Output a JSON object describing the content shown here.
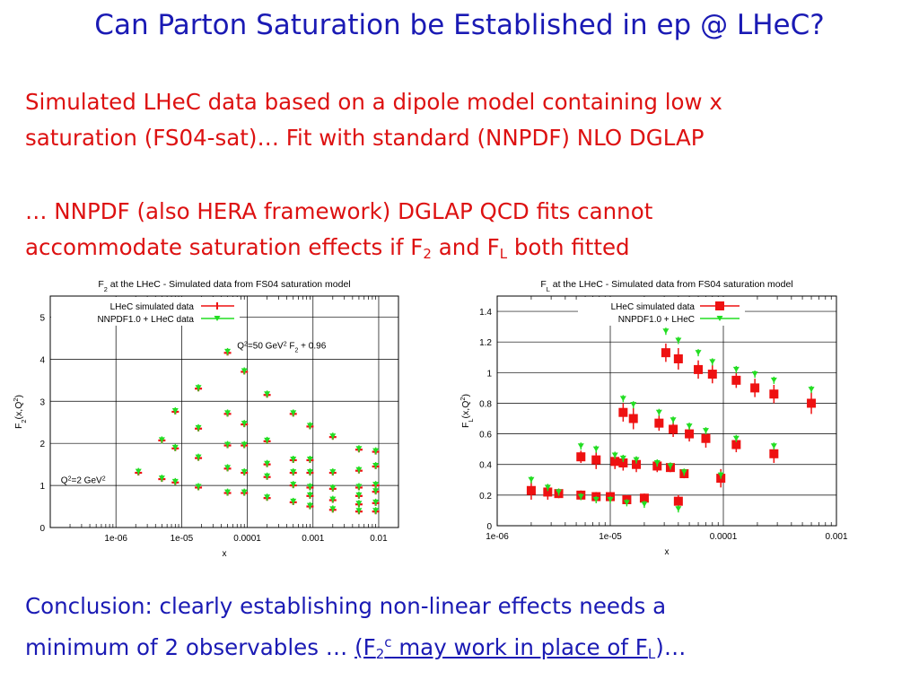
{
  "slide": {
    "title": "Can Parton Saturation be Established in ep @ LHeC?",
    "para1": {
      "line1": "Simulated LHeC data based on a dipole model containing low x",
      "line2": "saturation (FS04-sat)… Fit with standard (NNPDF) NLO DGLAP"
    },
    "para2": {
      "line1": "… NNPDF (also HERA framework) DGLAP QCD fits cannot",
      "line2_pre": "accommodate saturation effects if F",
      "line2_sub2": "2",
      "line2_and": " and F",
      "line2_subL": "L",
      "line2_post": " both fitted"
    },
    "conclusion": {
      "line1": "Conclusion: clearly establishing non-linear effects needs a",
      "line2_pre": "minimum of 2 observables … ",
      "line2_link_a": "(F",
      "line2_sub": "2",
      "line2_sup": "c",
      "line2_link_b": " may work in place of F",
      "line2_subL": "L",
      "line2_link_c": ")",
      "line2_post": "…"
    }
  },
  "colors": {
    "title": "#1a1ab4",
    "text": "#dd1111",
    "sim": "#ee1111",
    "nnpdf": "#22dd22"
  },
  "chart_data": [
    {
      "type": "scatter",
      "title": "F2 at the LHeC - Simulated data from FS04 saturation model",
      "xlabel": "x",
      "ylabel": "F2(x,Q2)",
      "xscale": "log",
      "xlim": [
        1e-07,
        0.02
      ],
      "ylim": [
        0,
        5.5
      ],
      "xticks": [
        {
          "v": 1e-06,
          "label": "1e-06"
        },
        {
          "v": 1e-05,
          "label": "1e-05"
        },
        {
          "v": 0.0001,
          "label": "0.0001"
        },
        {
          "v": 0.001,
          "label": "0.001"
        },
        {
          "v": 0.01,
          "label": "0.01"
        }
      ],
      "yticks": [
        0,
        1,
        2,
        3,
        4,
        5
      ],
      "grid": true,
      "legend_position": "top-left",
      "annotations": [
        {
          "text": "Q2=50 GeV2  F2 + 0.96",
          "parts": [
            "Q",
            "2",
            "=50 GeV",
            "2",
            "  F",
            "2",
            " + 0.96"
          ],
          "x": 7e-05,
          "y": 4.25
        },
        {
          "text": "Q2=2 GeV2",
          "parts": [
            "Q",
            "2",
            "=2 GeV",
            "2"
          ],
          "x": 1.45e-07,
          "y": 1.05
        }
      ],
      "series": [
        {
          "name": "LHeC simulated data",
          "marker": "red-cross",
          "points": [
            [
              2.2e-06,
              1.3
            ],
            [
              5e-06,
              1.15
            ],
            [
              5e-06,
              2.07
            ],
            [
              8e-06,
              1.07
            ],
            [
              8e-06,
              1.88
            ],
            [
              8e-06,
              2.75
            ],
            [
              1.8e-05,
              0.95
            ],
            [
              1.8e-05,
              1.65
            ],
            [
              1.8e-05,
              2.35
            ],
            [
              1.8e-05,
              3.3
            ],
            [
              5e-05,
              0.82
            ],
            [
              5e-05,
              1.4
            ],
            [
              5e-05,
              1.95
            ],
            [
              5e-05,
              2.7
            ],
            [
              5e-05,
              4.15
            ],
            [
              9e-05,
              0.82
            ],
            [
              9e-05,
              1.3
            ],
            [
              9e-05,
              1.95
            ],
            [
              9e-05,
              2.45
            ],
            [
              9e-05,
              3.7
            ],
            [
              0.0002,
              0.7
            ],
            [
              0.0002,
              1.2
            ],
            [
              0.0002,
              1.5
            ],
            [
              0.0002,
              2.05
            ],
            [
              0.0002,
              3.15
            ],
            [
              0.0005,
              0.6
            ],
            [
              0.0005,
              1.0
            ],
            [
              0.0005,
              1.3
            ],
            [
              0.0005,
              1.6
            ],
            [
              0.0005,
              2.7
            ],
            [
              0.0009,
              0.5
            ],
            [
              0.0009,
              0.75
            ],
            [
              0.0009,
              0.95
            ],
            [
              0.0009,
              1.3
            ],
            [
              0.0009,
              1.6
            ],
            [
              0.0009,
              2.4
            ],
            [
              0.002,
              0.42
            ],
            [
              0.002,
              0.65
            ],
            [
              0.002,
              0.92
            ],
            [
              0.002,
              1.3
            ],
            [
              0.002,
              2.15
            ],
            [
              0.005,
              0.38
            ],
            [
              0.005,
              0.55
            ],
            [
              0.005,
              0.75
            ],
            [
              0.005,
              0.95
            ],
            [
              0.005,
              1.35
            ],
            [
              0.005,
              1.85
            ],
            [
              0.009,
              0.38
            ],
            [
              0.009,
              0.58
            ],
            [
              0.009,
              0.85
            ],
            [
              0.009,
              1.0
            ],
            [
              0.009,
              1.45
            ],
            [
              0.009,
              1.8
            ]
          ]
        },
        {
          "name": "NNPDF1.0 + LHeC data",
          "marker": "green-triangle",
          "points": [
            [
              2.2e-06,
              1.33
            ],
            [
              5e-06,
              1.17
            ],
            [
              5e-06,
              2.08
            ],
            [
              8e-06,
              1.09
            ],
            [
              8e-06,
              1.9
            ],
            [
              8e-06,
              2.77
            ],
            [
              1.8e-05,
              0.97
            ],
            [
              1.8e-05,
              1.67
            ],
            [
              1.8e-05,
              2.37
            ],
            [
              1.8e-05,
              3.32
            ],
            [
              5e-05,
              0.84
            ],
            [
              5e-05,
              1.42
            ],
            [
              5e-05,
              1.97
            ],
            [
              5e-05,
              2.72
            ],
            [
              5e-05,
              4.18
            ],
            [
              9e-05,
              0.84
            ],
            [
              9e-05,
              1.32
            ],
            [
              9e-05,
              1.97
            ],
            [
              9e-05,
              2.47
            ],
            [
              9e-05,
              3.72
            ],
            [
              0.0002,
              0.72
            ],
            [
              0.0002,
              1.22
            ],
            [
              0.0002,
              1.52
            ],
            [
              0.0002,
              2.07
            ],
            [
              0.0002,
              3.17
            ],
            [
              0.0005,
              0.62
            ],
            [
              0.0005,
              1.02
            ],
            [
              0.0005,
              1.32
            ],
            [
              0.0005,
              1.62
            ],
            [
              0.0005,
              2.72
            ],
            [
              0.0009,
              0.52
            ],
            [
              0.0009,
              0.77
            ],
            [
              0.0009,
              0.97
            ],
            [
              0.0009,
              1.32
            ],
            [
              0.0009,
              1.62
            ],
            [
              0.0009,
              2.42
            ],
            [
              0.002,
              0.44
            ],
            [
              0.002,
              0.67
            ],
            [
              0.002,
              0.94
            ],
            [
              0.002,
              1.32
            ],
            [
              0.002,
              2.17
            ],
            [
              0.005,
              0.4
            ],
            [
              0.005,
              0.57
            ],
            [
              0.005,
              0.77
            ],
            [
              0.005,
              0.97
            ],
            [
              0.005,
              1.37
            ],
            [
              0.005,
              1.87
            ],
            [
              0.009,
              0.4
            ],
            [
              0.009,
              0.6
            ],
            [
              0.009,
              0.87
            ],
            [
              0.009,
              1.02
            ],
            [
              0.009,
              1.47
            ],
            [
              0.009,
              1.82
            ]
          ]
        }
      ]
    },
    {
      "type": "scatter",
      "title": "FL at the LHeC - Simulated data from FS04 saturation model",
      "xlabel": "x",
      "ylabel": "FL(x,Q2)",
      "xscale": "log",
      "xlim": [
        1e-06,
        0.001
      ],
      "ylim": [
        0,
        1.5
      ],
      "xticks": [
        {
          "v": 1e-06,
          "label": "1e-06"
        },
        {
          "v": 1e-05,
          "label": "1e-05"
        },
        {
          "v": 0.0001,
          "label": "0.0001"
        },
        {
          "v": 0.001,
          "label": "0.001"
        }
      ],
      "yticks": [
        0,
        0.2,
        0.4,
        0.6,
        0.8,
        1,
        1.2,
        1.4
      ],
      "grid": true,
      "legend_position": "top-right",
      "series": [
        {
          "name": "LHeC simulated data",
          "marker": "red-square",
          "points": [
            [
              2e-06,
              0.23,
              0.06
            ],
            [
              2.8e-06,
              0.22,
              0.05
            ],
            [
              3.5e-06,
              0.21,
              0.03
            ],
            [
              5.5e-06,
              0.2,
              0.03
            ],
            [
              7.5e-06,
              0.19,
              0.03
            ],
            [
              1e-05,
              0.19,
              0.03
            ],
            [
              1.4e-05,
              0.17,
              0.03
            ],
            [
              2e-05,
              0.18,
              0.03
            ],
            [
              4e-05,
              0.16,
              0.04
            ],
            [
              5.5e-06,
              0.45,
              0.04
            ],
            [
              7.5e-06,
              0.43,
              0.06
            ],
            [
              1.1e-05,
              0.42,
              0.05
            ],
            [
              1.3e-05,
              0.41,
              0.05
            ],
            [
              1.7e-05,
              0.4,
              0.05
            ],
            [
              2.6e-05,
              0.39,
              0.04
            ],
            [
              3.4e-05,
              0.38,
              0.03
            ],
            [
              4.5e-05,
              0.34,
              0.03
            ],
            [
              9.5e-05,
              0.31,
              0.06
            ],
            [
              1.3e-05,
              0.74,
              0.06
            ],
            [
              1.6e-05,
              0.7,
              0.07
            ],
            [
              2.7e-05,
              0.67,
              0.05
            ],
            [
              3.6e-05,
              0.63,
              0.05
            ],
            [
              5e-05,
              0.6,
              0.05
            ],
            [
              7e-05,
              0.57,
              0.06
            ],
            [
              0.00013,
              0.53,
              0.05
            ],
            [
              0.00028,
              0.47,
              0.06
            ],
            [
              3.1e-05,
              1.13,
              0.06
            ],
            [
              4e-05,
              1.09,
              0.07
            ],
            [
              6e-05,
              1.02,
              0.06
            ],
            [
              8e-05,
              0.99,
              0.06
            ],
            [
              0.00013,
              0.95,
              0.05
            ],
            [
              0.00019,
              0.9,
              0.06
            ],
            [
              0.00028,
              0.86,
              0.06
            ],
            [
              0.0006,
              0.8,
              0.07
            ]
          ]
        },
        {
          "name": "NNPDF1.0 + LHeC",
          "marker": "green-triangle",
          "points": [
            [
              2e-06,
              0.3
            ],
            [
              2.8e-06,
              0.25
            ],
            [
              3.5e-06,
              0.22
            ],
            [
              5.5e-06,
              0.19
            ],
            [
              7.5e-06,
              0.17
            ],
            [
              1e-05,
              0.17
            ],
            [
              1.4e-05,
              0.15
            ],
            [
              2e-05,
              0.14
            ],
            [
              4e-05,
              0.11
            ],
            [
              5.5e-06,
              0.52
            ],
            [
              7.5e-06,
              0.5
            ],
            [
              1.1e-05,
              0.46
            ],
            [
              1.3e-05,
              0.44
            ],
            [
              1.7e-05,
              0.43
            ],
            [
              2.6e-05,
              0.41
            ],
            [
              3.4e-05,
              0.39
            ],
            [
              4.5e-05,
              0.35
            ],
            [
              9.5e-05,
              0.33
            ],
            [
              1.3e-05,
              0.83
            ],
            [
              1.6e-05,
              0.79
            ],
            [
              2.7e-05,
              0.74
            ],
            [
              3.6e-05,
              0.69
            ],
            [
              5e-05,
              0.65
            ],
            [
              7e-05,
              0.62
            ],
            [
              0.00013,
              0.57
            ],
            [
              0.00028,
              0.52
            ],
            [
              3.1e-05,
              1.27
            ],
            [
              4e-05,
              1.21
            ],
            [
              6e-05,
              1.13
            ],
            [
              8e-05,
              1.07
            ],
            [
              0.00013,
              1.02
            ],
            [
              0.00019,
              0.99
            ],
            [
              0.00028,
              0.95
            ],
            [
              0.0006,
              0.89
            ]
          ]
        }
      ]
    }
  ]
}
